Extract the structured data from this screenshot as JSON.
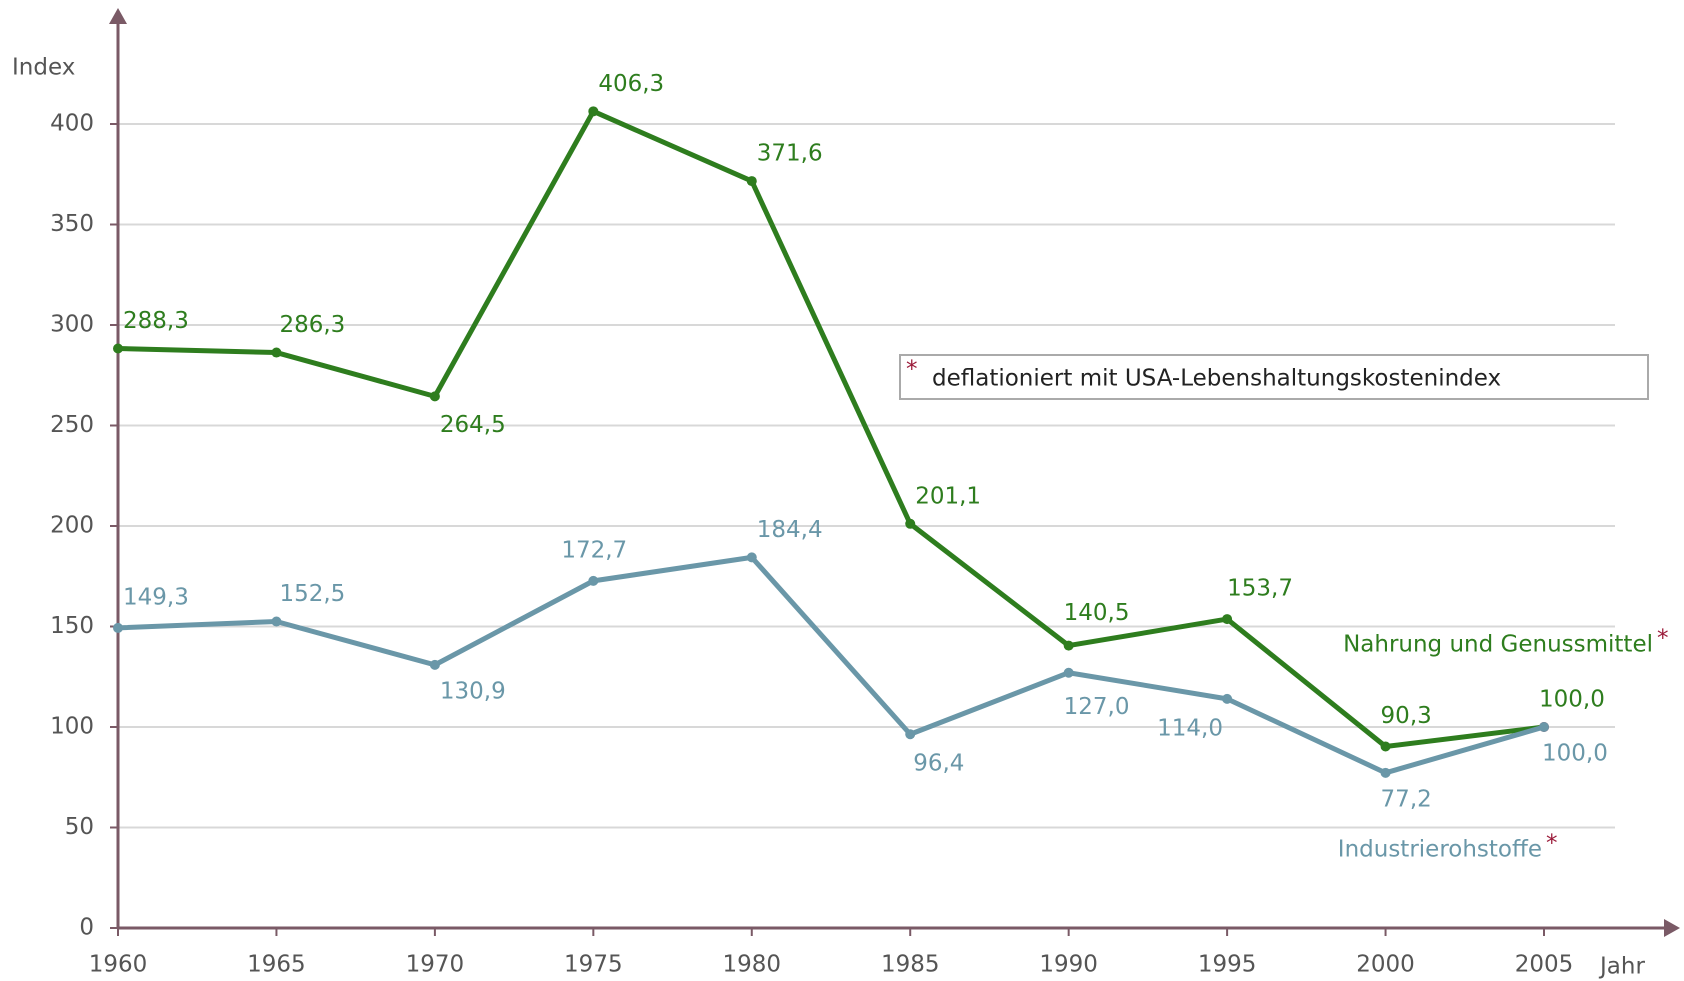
{
  "chart_data": {
    "type": "line",
    "y_label": "Index",
    "x_label": "Jahr",
    "annotation": "deflationiert mit USA-Lebenshaltungskostenindex",
    "asterisk": "*",
    "x": [
      1960,
      1965,
      1970,
      1975,
      1980,
      1985,
      1990,
      1995,
      2000,
      2005
    ],
    "xlim": [
      1960,
      2005
    ],
    "xticks": [
      1960,
      1965,
      1970,
      1975,
      1980,
      1985,
      1990,
      1995,
      2000,
      2005
    ],
    "ylim": [
      0,
      400
    ],
    "yticks": [
      0,
      50,
      100,
      150,
      200,
      250,
      300,
      350,
      400
    ],
    "grid": true,
    "series": [
      {
        "name": "Nahrung und Genussmittel",
        "color": "#2e7d1e",
        "values": [
          288.3,
          286.3,
          264.5,
          406.3,
          371.6,
          201.1,
          140.5,
          153.7,
          90.3,
          100.0
        ],
        "value_labels": [
          "288,3",
          "286,3",
          "264,5",
          "406,3",
          "371,6",
          "201,1",
          "140,5",
          "153,7",
          "90,3",
          "100,0"
        ]
      },
      {
        "name": "Industrierohstoffe",
        "color": "#6a97a8",
        "values": [
          149.3,
          152.5,
          130.9,
          172.7,
          184.4,
          96.4,
          127.0,
          114.0,
          77.2,
          100.0
        ],
        "value_labels": [
          "149,3",
          "152,5",
          "130,9",
          "172,7",
          "184,4",
          "96,4",
          "127,0",
          "114,0",
          "77,2",
          "100,0"
        ]
      }
    ]
  }
}
